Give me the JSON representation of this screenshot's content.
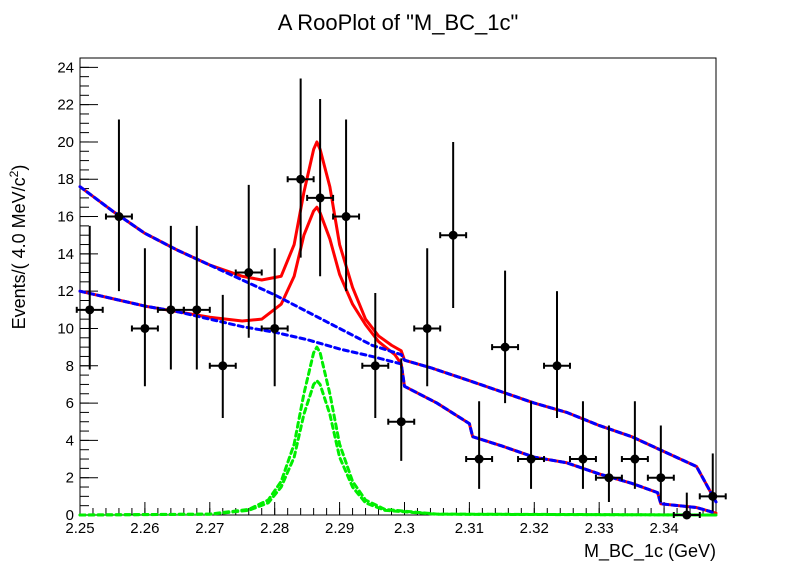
{
  "chart_data": {
    "type": "scatter",
    "title": "A RooPlot of \"M_BC_1c\"",
    "xlabel": "M_BC_1c (GeV)",
    "ylabel_main": "Events/( 4.0 MeV/c",
    "ylabel_sup": "2",
    "ylabel_close": ")",
    "xlim": [
      2.25,
      2.348
    ],
    "ylim": [
      0,
      24.5
    ],
    "x_ticks": [
      2.25,
      2.26,
      2.27,
      2.28,
      2.29,
      2.3,
      2.31,
      2.32,
      2.33,
      2.34
    ],
    "x_tick_labels": [
      "2.25",
      "2.26",
      "2.27",
      "2.28",
      "2.29",
      "2.3",
      "2.31",
      "2.32",
      "2.33",
      "2.34"
    ],
    "y_ticks": [
      0,
      2,
      4,
      6,
      8,
      10,
      12,
      14,
      16,
      18,
      20,
      22,
      24
    ],
    "y_tick_labels": [
      "0",
      "2",
      "4",
      "6",
      "8",
      "10",
      "12",
      "14",
      "16",
      "18",
      "20",
      "22",
      "24"
    ],
    "grid": false,
    "x_half_bin": 0.002,
    "data_points": [
      {
        "x": 2.2515,
        "y": 11,
        "lo": 7.8,
        "hi": 15.5
      },
      {
        "x": 2.256,
        "y": 16,
        "lo": 12.0,
        "hi": 21.2
      },
      {
        "x": 2.26,
        "y": 10,
        "lo": 6.9,
        "hi": 14.3
      },
      {
        "x": 2.264,
        "y": 11,
        "lo": 7.8,
        "hi": 15.5
      },
      {
        "x": 2.268,
        "y": 11,
        "lo": 7.8,
        "hi": 15.5
      },
      {
        "x": 2.272,
        "y": 8,
        "lo": 5.2,
        "hi": 11.8
      },
      {
        "x": 2.276,
        "y": 13,
        "lo": 9.5,
        "hi": 17.7
      },
      {
        "x": 2.28,
        "y": 10,
        "lo": 6.9,
        "hi": 14.3
      },
      {
        "x": 2.284,
        "y": 18,
        "lo": 13.8,
        "hi": 23.4
      },
      {
        "x": 2.287,
        "y": 17,
        "lo": 12.8,
        "hi": 22.3
      },
      {
        "x": 2.291,
        "y": 16,
        "lo": 12.0,
        "hi": 21.2
      },
      {
        "x": 2.2955,
        "y": 8,
        "lo": 5.2,
        "hi": 11.9
      },
      {
        "x": 2.2995,
        "y": 5,
        "lo": 2.9,
        "hi": 8.4
      },
      {
        "x": 2.3035,
        "y": 10,
        "lo": 6.9,
        "hi": 14.3
      },
      {
        "x": 2.3075,
        "y": 15,
        "lo": 11.1,
        "hi": 20.0
      },
      {
        "x": 2.3115,
        "y": 3,
        "lo": 1.4,
        "hi": 6.1
      },
      {
        "x": 2.3155,
        "y": 9,
        "lo": 6.0,
        "hi": 13.1
      },
      {
        "x": 2.3195,
        "y": 3,
        "lo": 1.4,
        "hi": 6.1
      },
      {
        "x": 2.3235,
        "y": 8,
        "lo": 5.2,
        "hi": 12.0
      },
      {
        "x": 2.3275,
        "y": 3,
        "lo": 1.4,
        "hi": 6.1
      },
      {
        "x": 2.3315,
        "y": 2,
        "lo": 0.7,
        "hi": 4.8
      },
      {
        "x": 2.3355,
        "y": 3,
        "lo": 1.4,
        "hi": 6.1
      },
      {
        "x": 2.3395,
        "y": 2,
        "lo": 0.7,
        "hi": 4.8
      },
      {
        "x": 2.3435,
        "y": 0,
        "lo": 0,
        "hi": 1.2
      },
      {
        "x": 2.3475,
        "y": 1,
        "lo": 0.2,
        "hi": 3.3
      }
    ],
    "curves": [
      {
        "style": "total",
        "color": "#ff0000",
        "dash": "none",
        "points": [
          [
            2.25,
            17.6
          ],
          [
            2.255,
            16.3
          ],
          [
            2.26,
            15.1
          ],
          [
            2.265,
            14.2
          ],
          [
            2.27,
            13.4
          ],
          [
            2.275,
            12.8
          ],
          [
            2.278,
            12.6
          ],
          [
            2.281,
            12.8
          ],
          [
            2.283,
            14.5
          ],
          [
            2.2845,
            17.3
          ],
          [
            2.286,
            19.6
          ],
          [
            2.2865,
            20.0
          ],
          [
            2.287,
            19.6
          ],
          [
            2.2885,
            17.6
          ],
          [
            2.29,
            14.5
          ],
          [
            2.292,
            12.2
          ],
          [
            2.294,
            10.5
          ],
          [
            2.296,
            9.6
          ],
          [
            2.298,
            9.1
          ],
          [
            2.2995,
            8.8
          ],
          [
            2.3,
            8.3
          ],
          [
            2.304,
            7.9
          ],
          [
            2.31,
            7.2
          ],
          [
            2.315,
            6.6
          ],
          [
            2.32,
            6.0
          ],
          [
            2.325,
            5.5
          ],
          [
            2.33,
            4.8
          ],
          [
            2.335,
            4.2
          ],
          [
            2.34,
            3.4
          ],
          [
            2.345,
            2.6
          ],
          [
            2.348,
            0.7
          ]
        ]
      },
      {
        "style": "total",
        "color": "#ff0000",
        "dash": "none",
        "points": [
          [
            2.25,
            12.0
          ],
          [
            2.255,
            11.6
          ],
          [
            2.26,
            11.2
          ],
          [
            2.265,
            10.9
          ],
          [
            2.27,
            10.6
          ],
          [
            2.275,
            10.4
          ],
          [
            2.278,
            10.5
          ],
          [
            2.281,
            11.3
          ],
          [
            2.283,
            12.8
          ],
          [
            2.2845,
            15.0
          ],
          [
            2.286,
            16.3
          ],
          [
            2.2865,
            16.5
          ],
          [
            2.287,
            16.2
          ],
          [
            2.2885,
            14.8
          ],
          [
            2.29,
            12.9
          ],
          [
            2.292,
            11.3
          ],
          [
            2.294,
            10.2
          ],
          [
            2.296,
            9.3
          ],
          [
            2.2985,
            8.6
          ],
          [
            2.2995,
            8.1
          ],
          [
            2.3,
            6.9
          ],
          [
            2.305,
            6.0
          ],
          [
            2.31,
            4.9
          ],
          [
            2.3105,
            4.2
          ],
          [
            2.315,
            3.7
          ],
          [
            2.32,
            3.1
          ],
          [
            2.325,
            2.8
          ],
          [
            2.33,
            2.2
          ],
          [
            2.335,
            1.7
          ],
          [
            2.339,
            1.2
          ],
          [
            2.3395,
            0.6
          ],
          [
            2.345,
            0.4
          ],
          [
            2.348,
            0.1
          ]
        ]
      },
      {
        "style": "background",
        "color": "#0000ff",
        "dash": "5,4",
        "points": [
          [
            2.25,
            17.6
          ],
          [
            2.255,
            16.3
          ],
          [
            2.26,
            15.1
          ],
          [
            2.265,
            14.2
          ],
          [
            2.27,
            13.4
          ],
          [
            2.275,
            12.6
          ],
          [
            2.28,
            11.8
          ],
          [
            2.285,
            10.9
          ],
          [
            2.29,
            10.0
          ],
          [
            2.295,
            9.1
          ],
          [
            2.2995,
            8.6
          ],
          [
            2.3,
            8.3
          ],
          [
            2.304,
            7.9
          ],
          [
            2.31,
            7.2
          ],
          [
            2.315,
            6.6
          ],
          [
            2.32,
            6.0
          ],
          [
            2.325,
            5.5
          ],
          [
            2.33,
            4.8
          ],
          [
            2.335,
            4.2
          ],
          [
            2.34,
            3.4
          ],
          [
            2.345,
            2.6
          ],
          [
            2.348,
            0.7
          ]
        ]
      },
      {
        "style": "background",
        "color": "#0000ff",
        "dash": "5,4",
        "points": [
          [
            2.25,
            12.0
          ],
          [
            2.255,
            11.6
          ],
          [
            2.26,
            11.2
          ],
          [
            2.265,
            10.9
          ],
          [
            2.27,
            10.5
          ],
          [
            2.275,
            10.1
          ],
          [
            2.28,
            9.8
          ],
          [
            2.285,
            9.4
          ],
          [
            2.29,
            8.9
          ],
          [
            2.295,
            8.5
          ],
          [
            2.2995,
            8.1
          ],
          [
            2.3,
            6.9
          ],
          [
            2.305,
            6.0
          ],
          [
            2.31,
            4.9
          ],
          [
            2.3105,
            4.2
          ],
          [
            2.315,
            3.7
          ],
          [
            2.32,
            3.1
          ],
          [
            2.325,
            2.8
          ],
          [
            2.33,
            2.2
          ],
          [
            2.335,
            1.7
          ],
          [
            2.339,
            1.2
          ],
          [
            2.3395,
            0.6
          ],
          [
            2.345,
            0.4
          ],
          [
            2.348,
            0.1
          ]
        ]
      },
      {
        "style": "signal",
        "color": "#00ee00",
        "dash": "5,4",
        "points": [
          [
            2.25,
            0
          ],
          [
            2.27,
            0.05
          ],
          [
            2.276,
            0.3
          ],
          [
            2.279,
            0.8
          ],
          [
            2.281,
            1.8
          ],
          [
            2.283,
            3.8
          ],
          [
            2.2845,
            6.5
          ],
          [
            2.286,
            8.7
          ],
          [
            2.2865,
            9.0
          ],
          [
            2.287,
            8.7
          ],
          [
            2.2885,
            6.5
          ],
          [
            2.29,
            3.8
          ],
          [
            2.292,
            1.8
          ],
          [
            2.294,
            0.8
          ],
          [
            2.297,
            0.3
          ],
          [
            2.305,
            0.05
          ],
          [
            2.348,
            0
          ]
        ]
      },
      {
        "style": "signal",
        "color": "#00ee00",
        "dash": "5,4",
        "points": [
          [
            2.25,
            0
          ],
          [
            2.27,
            0.04
          ],
          [
            2.276,
            0.25
          ],
          [
            2.279,
            0.65
          ],
          [
            2.281,
            1.5
          ],
          [
            2.283,
            3.1
          ],
          [
            2.2845,
            5.4
          ],
          [
            2.286,
            7.0
          ],
          [
            2.2865,
            7.2
          ],
          [
            2.287,
            7.0
          ],
          [
            2.2885,
            5.4
          ],
          [
            2.29,
            3.1
          ],
          [
            2.292,
            1.5
          ],
          [
            2.294,
            0.65
          ],
          [
            2.297,
            0.25
          ],
          [
            2.305,
            0.04
          ],
          [
            2.348,
            0
          ]
        ]
      }
    ]
  }
}
